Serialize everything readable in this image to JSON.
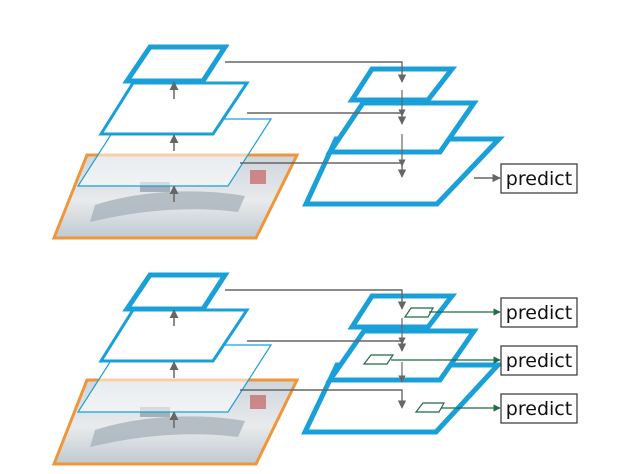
{
  "colors": {
    "pyramid_level": "#1aa0d8",
    "input_image": "#f0963a",
    "connection_arrow": "#666666",
    "prediction_arrow": "#1f6b43",
    "box_border": "#333333"
  },
  "top_diagram": {
    "predict_label": "predict"
  },
  "bottom_diagram": {
    "predict_labels": [
      "predict",
      "predict",
      "predict"
    ]
  }
}
